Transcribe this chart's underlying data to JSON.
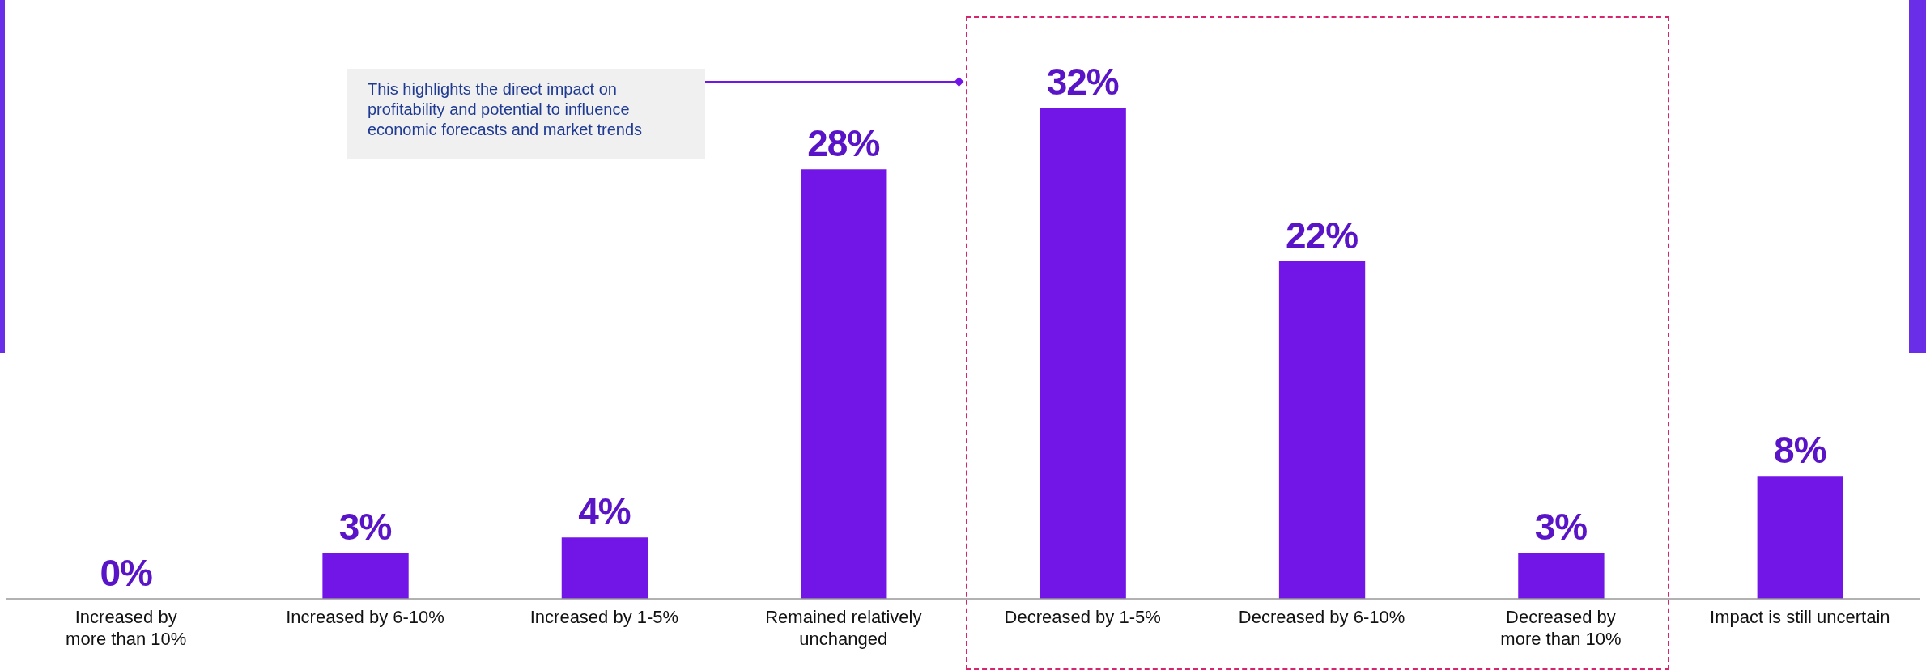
{
  "chart_data": {
    "type": "bar",
    "categories": [
      "Increased by more than 10%",
      "Increased by 6-10%",
      "Increased by 1-5%",
      "Remained relatively unchanged",
      "Decreased by 1-5%",
      "Decreased by 6-10%",
      "Decreased by more than 10%",
      "Impact is still uncertain"
    ],
    "values": [
      0,
      3,
      4,
      28,
      32,
      22,
      3,
      8
    ],
    "value_labels": [
      "0%",
      "3%",
      "4%",
      "28%",
      "32%",
      "22%",
      "3%",
      "8%"
    ],
    "color": "#7216e8",
    "annotations": [
      "This highlights the direct impact on profitability and potential to influence economic forecasts and market trends"
    ]
  }
}
